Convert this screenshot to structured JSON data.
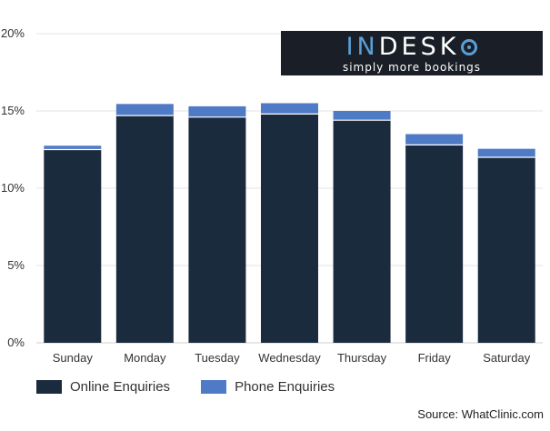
{
  "chart_data": {
    "type": "bar",
    "stacked": true,
    "categories": [
      "Sunday",
      "Monday",
      "Tuesday",
      "Wednesday",
      "Thursday",
      "Friday",
      "Saturday"
    ],
    "series": [
      {
        "name": "Online Enquiries",
        "color": "#1b2b3e",
        "values": [
          12.5,
          14.7,
          14.6,
          14.8,
          14.4,
          12.8,
          12.0
        ]
      },
      {
        "name": "Phone Enquiries",
        "color": "#4f7ac6",
        "values": [
          0.25,
          0.75,
          0.7,
          0.7,
          0.6,
          0.7,
          0.55
        ]
      }
    ],
    "ylim": [
      0,
      20
    ],
    "yticks": [
      0,
      5,
      10,
      15,
      20
    ],
    "ytick_labels": [
      "0%",
      "5%",
      "10%",
      "15%",
      "20%"
    ],
    "grid": true,
    "legend_position": "bottom-left"
  },
  "logo": {
    "word_start": "IN",
    "word_end": "DESK",
    "tagline": "simply more bookings"
  },
  "source": "Source: WhatClinic.com"
}
